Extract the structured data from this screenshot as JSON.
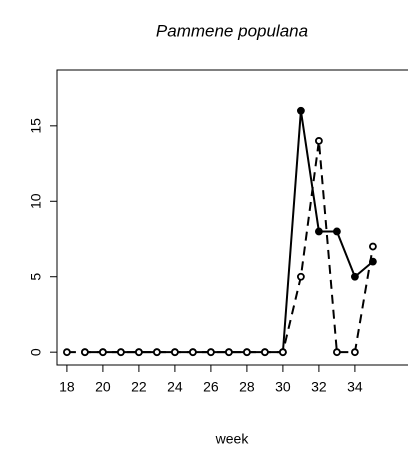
{
  "chart_data": {
    "type": "line",
    "title": "Pammene populana",
    "x_label": "week",
    "x": [
      18,
      19,
      20,
      21,
      22,
      23,
      24,
      25,
      26,
      27,
      28,
      29,
      30,
      31,
      32,
      33,
      34,
      35
    ],
    "series": [
      {
        "color": "#000000",
        "dashed": false,
        "marker": "filled",
        "values": [
          null,
          0,
          0,
          0,
          0,
          0,
          0,
          0,
          0,
          0,
          0,
          0,
          0,
          16,
          8,
          8,
          5,
          6
        ]
      },
      {
        "color": "#000000",
        "dashed": true,
        "marker": "open",
        "values": [
          0,
          0,
          0,
          0,
          0,
          0,
          0,
          0,
          0,
          0,
          0,
          0,
          0,
          5,
          14,
          0,
          0,
          7
        ]
      }
    ],
    "xlim": [
      17.45,
      36.95
    ],
    "xticks": [
      18,
      20,
      22,
      24,
      26,
      28,
      30,
      32,
      34
    ],
    "ylim": [
      -0.85,
      18.7
    ],
    "yticks": [
      0,
      5,
      10,
      15
    ],
    "grid": false
  }
}
